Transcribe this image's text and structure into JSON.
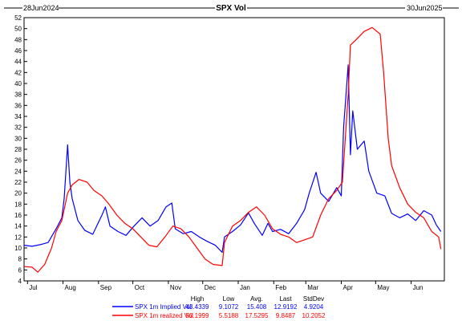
{
  "chart_data": {
    "type": "line",
    "title": "SPX Vol",
    "start_date_label": "28Jun2024",
    "end_date_label": "30Jun2025",
    "xlabel": "",
    "ylabel": "",
    "ylim": [
      4,
      52
    ],
    "yticks": [
      4,
      6,
      8,
      10,
      12,
      14,
      16,
      18,
      20,
      22,
      24,
      26,
      28,
      30,
      32,
      34,
      36,
      38,
      40,
      42,
      44,
      46,
      48,
      50,
      52
    ],
    "xlim": [
      "2024-06-28",
      "2025-06-30"
    ],
    "month_ticks": [
      {
        "date": "2024-07-01",
        "label": "Jul"
      },
      {
        "date": "2024-08-01",
        "label": "Aug"
      },
      {
        "date": "2024-09-01",
        "label": "Sep"
      },
      {
        "date": "2024-10-01",
        "label": "Oct"
      },
      {
        "date": "2024-11-01",
        "label": "Nov"
      },
      {
        "date": "2024-12-01",
        "label": "Dec"
      },
      {
        "date": "2025-01-01",
        "label": "Jan"
      },
      {
        "date": "2025-02-01",
        "label": "Feb"
      },
      {
        "date": "2025-03-01",
        "label": "Mar"
      },
      {
        "date": "2025-04-01",
        "label": "Apr"
      },
      {
        "date": "2025-05-01",
        "label": "May"
      },
      {
        "date": "2025-06-01",
        "label": "Jun"
      }
    ],
    "grid": false,
    "legend_position": "bottom",
    "stats_headers": [
      "High",
      "Low",
      "Avg.",
      "Last",
      "StdDev"
    ],
    "series": [
      {
        "name": "SPX 1m Implied Vol",
        "color": "#0000ff",
        "stats": [
          "43.4339",
          "9.1072",
          "15.408",
          "12.9192",
          "4.9204"
        ],
        "points": [
          [
            "2024-06-28",
            10.5
          ],
          [
            "2024-07-05",
            10.3
          ],
          [
            "2024-07-12",
            10.6
          ],
          [
            "2024-07-19",
            11.0
          ],
          [
            "2024-07-26",
            13.5
          ],
          [
            "2024-07-31",
            15.5
          ],
          [
            "2024-08-02",
            19.0
          ],
          [
            "2024-08-05",
            28.8
          ],
          [
            "2024-08-07",
            22.0
          ],
          [
            "2024-08-09",
            19.0
          ],
          [
            "2024-08-14",
            15.0
          ],
          [
            "2024-08-20",
            13.2
          ],
          [
            "2024-08-27",
            12.5
          ],
          [
            "2024-09-04",
            16.0
          ],
          [
            "2024-09-07",
            17.5
          ],
          [
            "2024-09-11",
            14.0
          ],
          [
            "2024-09-18",
            13.0
          ],
          [
            "2024-09-25",
            12.3
          ],
          [
            "2024-10-02",
            14.0
          ],
          [
            "2024-10-09",
            15.5
          ],
          [
            "2024-10-16",
            14.0
          ],
          [
            "2024-10-23",
            15.0
          ],
          [
            "2024-10-30",
            17.5
          ],
          [
            "2024-11-04",
            18.2
          ],
          [
            "2024-11-07",
            13.5
          ],
          [
            "2024-11-14",
            12.6
          ],
          [
            "2024-11-21",
            13.0
          ],
          [
            "2024-11-28",
            12.0
          ],
          [
            "2024-12-05",
            11.2
          ],
          [
            "2024-12-12",
            10.5
          ],
          [
            "2024-12-18",
            9.2
          ],
          [
            "2024-12-20",
            12.0
          ],
          [
            "2024-12-27",
            13.0
          ],
          [
            "2025-01-03",
            14.2
          ],
          [
            "2025-01-10",
            16.4
          ],
          [
            "2025-01-15",
            14.5
          ],
          [
            "2025-01-22",
            12.3
          ],
          [
            "2025-01-27",
            14.5
          ],
          [
            "2025-01-31",
            13.0
          ],
          [
            "2025-02-07",
            13.4
          ],
          [
            "2025-02-14",
            12.6
          ],
          [
            "2025-02-21",
            14.5
          ],
          [
            "2025-02-28",
            17.0
          ],
          [
            "2025-03-04",
            20.0
          ],
          [
            "2025-03-10",
            23.8
          ],
          [
            "2025-03-14",
            20.0
          ],
          [
            "2025-03-21",
            18.5
          ],
          [
            "2025-03-28",
            21.0
          ],
          [
            "2025-04-01",
            19.5
          ],
          [
            "2025-04-03",
            32.0
          ],
          [
            "2025-04-07",
            43.4
          ],
          [
            "2025-04-09",
            27.0
          ],
          [
            "2025-04-11",
            35.0
          ],
          [
            "2025-04-15",
            28.0
          ],
          [
            "2025-04-21",
            29.5
          ],
          [
            "2025-04-25",
            24.0
          ],
          [
            "2025-05-02",
            20.0
          ],
          [
            "2025-05-09",
            19.5
          ],
          [
            "2025-05-15",
            16.3
          ],
          [
            "2025-05-22",
            15.5
          ],
          [
            "2025-05-29",
            16.2
          ],
          [
            "2025-06-05",
            15.0
          ],
          [
            "2025-06-12",
            16.8
          ],
          [
            "2025-06-19",
            16.0
          ],
          [
            "2025-06-23",
            14.2
          ],
          [
            "2025-06-27",
            13.0
          ]
        ]
      },
      {
        "name": "SPX 1m realized Vol",
        "color": "#ff0000",
        "stats": [
          "50.1999",
          "5.5188",
          "17.5295",
          "9.8487",
          "10.2052"
        ],
        "points": [
          [
            "2024-06-28",
            6.6
          ],
          [
            "2024-07-05",
            6.5
          ],
          [
            "2024-07-10",
            5.6
          ],
          [
            "2024-07-16",
            7.0
          ],
          [
            "2024-07-22",
            10.0
          ],
          [
            "2024-07-26",
            13.0
          ],
          [
            "2024-07-31",
            15.0
          ],
          [
            "2024-08-05",
            20.0
          ],
          [
            "2024-08-09",
            21.5
          ],
          [
            "2024-08-15",
            22.5
          ],
          [
            "2024-08-22",
            22.0
          ],
          [
            "2024-08-28",
            20.5
          ],
          [
            "2024-09-04",
            19.5
          ],
          [
            "2024-09-10",
            18.0
          ],
          [
            "2024-09-17",
            16.0
          ],
          [
            "2024-09-24",
            14.5
          ],
          [
            "2024-10-01",
            13.5
          ],
          [
            "2024-10-08",
            12.0
          ],
          [
            "2024-10-15",
            10.5
          ],
          [
            "2024-10-22",
            10.2
          ],
          [
            "2024-10-29",
            12.0
          ],
          [
            "2024-11-05",
            14.0
          ],
          [
            "2024-11-12",
            13.5
          ],
          [
            "2024-11-19",
            12.0
          ],
          [
            "2024-11-26",
            10.0
          ],
          [
            "2024-12-03",
            8.0
          ],
          [
            "2024-12-10",
            7.0
          ],
          [
            "2024-12-18",
            6.8
          ],
          [
            "2024-12-20",
            11.0
          ],
          [
            "2024-12-27",
            14.0
          ],
          [
            "2025-01-03",
            15.0
          ],
          [
            "2025-01-10",
            16.5
          ],
          [
            "2025-01-17",
            17.5
          ],
          [
            "2025-01-24",
            16.0
          ],
          [
            "2025-01-31",
            13.5
          ],
          [
            "2025-02-07",
            12.5
          ],
          [
            "2025-02-14",
            12.0
          ],
          [
            "2025-02-21",
            11.0
          ],
          [
            "2025-02-28",
            11.5
          ],
          [
            "2025-03-07",
            12.0
          ],
          [
            "2025-03-14",
            16.0
          ],
          [
            "2025-03-21",
            19.0
          ],
          [
            "2025-03-28",
            20.5
          ],
          [
            "2025-04-02",
            22.0
          ],
          [
            "2025-04-07",
            38.0
          ],
          [
            "2025-04-09",
            47.0
          ],
          [
            "2025-04-14",
            48.0
          ],
          [
            "2025-04-21",
            49.5
          ],
          [
            "2025-04-28",
            50.2
          ],
          [
            "2025-05-05",
            49.0
          ],
          [
            "2025-05-08",
            42.0
          ],
          [
            "2025-05-12",
            30.0
          ],
          [
            "2025-05-15",
            25.0
          ],
          [
            "2025-05-22",
            21.0
          ],
          [
            "2025-05-29",
            18.0
          ],
          [
            "2025-06-05",
            16.5
          ],
          [
            "2025-06-12",
            15.5
          ],
          [
            "2025-06-19",
            13.0
          ],
          [
            "2025-06-25",
            12.0
          ],
          [
            "2025-06-27",
            9.8
          ]
        ]
      }
    ]
  }
}
